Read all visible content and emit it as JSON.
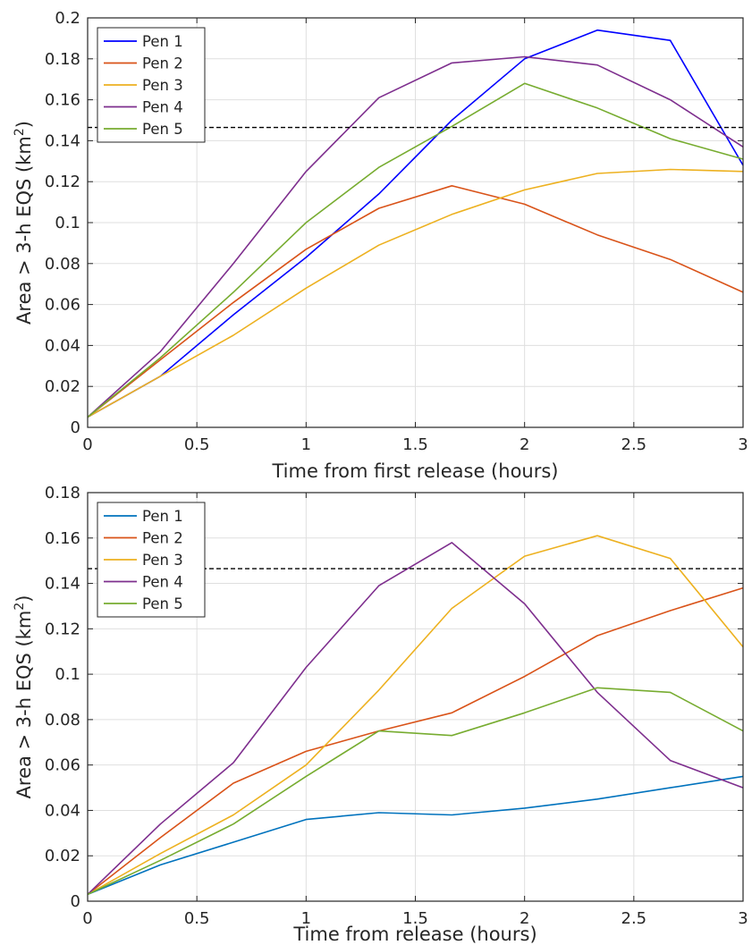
{
  "chart_data": [
    {
      "type": "line",
      "xlabel": "Time from first release (hours)",
      "ylabel": "Area > 3-h EQS (km",
      "ylabel_sup": "2",
      "ylabel_end": ")",
      "xlim": [
        0,
        3
      ],
      "ylim": [
        0,
        0.2
      ],
      "xticks": [
        0,
        0.5,
        1,
        1.5,
        2,
        2.5,
        3
      ],
      "xtick_labels": [
        "0",
        "0.5",
        "1",
        "1.5",
        "2",
        "2.5",
        "3"
      ],
      "yticks": [
        0,
        0.02,
        0.04,
        0.06,
        0.08,
        0.1,
        0.12,
        0.14,
        0.16,
        0.18,
        0.2
      ],
      "ytick_labels": [
        "0",
        "0.02",
        "0.04",
        "0.06",
        "0.08",
        "0.1",
        "0.12",
        "0.14",
        "0.16",
        "0.18",
        "0.2"
      ],
      "grid": true,
      "legend_position": "top-left",
      "threshold": 0.1465,
      "x": [
        0,
        0.333,
        0.667,
        1,
        1.333,
        1.667,
        2,
        2.333,
        2.667,
        3
      ],
      "series": [
        {
          "name": "Pen 1",
          "color": "#0000ff",
          "values": [
            0.005,
            0.025,
            0.055,
            0.083,
            0.114,
            0.15,
            0.18,
            0.194,
            0.189,
            0.128
          ]
        },
        {
          "name": "Pen 2",
          "color": "#d95319",
          "values": [
            0.005,
            0.033,
            0.061,
            0.087,
            0.107,
            0.118,
            0.109,
            0.094,
            0.082,
            0.066
          ]
        },
        {
          "name": "Pen 3",
          "color": "#edb120",
          "values": [
            0.005,
            0.025,
            0.045,
            0.068,
            0.089,
            0.104,
            0.116,
            0.124,
            0.126,
            0.125
          ]
        },
        {
          "name": "Pen 4",
          "color": "#7e2f8e",
          "values": [
            0.005,
            0.037,
            0.08,
            0.125,
            0.161,
            0.178,
            0.181,
            0.177,
            0.16,
            0.137
          ]
        },
        {
          "name": "Pen 5",
          "color": "#77ac30",
          "values": [
            0.005,
            0.034,
            0.066,
            0.1,
            0.127,
            0.147,
            0.168,
            0.156,
            0.141,
            0.131
          ]
        }
      ]
    },
    {
      "type": "line",
      "xlabel": "Time from release (hours)",
      "ylabel": "Area > 3-h EQS (km",
      "ylabel_sup": "2",
      "ylabel_end": ")",
      "xlim": [
        0,
        3
      ],
      "ylim": [
        0,
        0.18
      ],
      "xticks": [
        0,
        0.5,
        1,
        1.5,
        2,
        2.5,
        3
      ],
      "xtick_labels": [
        "0",
        "0.5",
        "1",
        "1.5",
        "2",
        "2.5",
        "3"
      ],
      "yticks": [
        0,
        0.02,
        0.04,
        0.06,
        0.08,
        0.1,
        0.12,
        0.14,
        0.16,
        0.18
      ],
      "ytick_labels": [
        "0",
        "0.02",
        "0.04",
        "0.06",
        "0.08",
        "0.1",
        "0.12",
        "0.14",
        "0.16",
        "0.18"
      ],
      "grid": true,
      "legend_position": "top-left",
      "threshold": 0.1465,
      "x": [
        0,
        0.333,
        0.667,
        1,
        1.333,
        1.667,
        2,
        2.333,
        2.667,
        3
      ],
      "series": [
        {
          "name": "Pen 1",
          "color": "#0072bd",
          "values": [
            0.003,
            0.016,
            0.026,
            0.036,
            0.039,
            0.038,
            0.041,
            0.045,
            0.05,
            0.055
          ]
        },
        {
          "name": "Pen 2",
          "color": "#d95319",
          "values": [
            0.003,
            0.028,
            0.052,
            0.066,
            0.075,
            0.083,
            0.099,
            0.117,
            0.128,
            0.138
          ]
        },
        {
          "name": "Pen 3",
          "color": "#edb120",
          "values": [
            0.003,
            0.021,
            0.038,
            0.06,
            0.093,
            0.129,
            0.152,
            0.161,
            0.151,
            0.112
          ]
        },
        {
          "name": "Pen 4",
          "color": "#7e2f8e",
          "values": [
            0.003,
            0.034,
            0.061,
            0.103,
            0.139,
            0.158,
            0.131,
            0.092,
            0.062,
            0.05
          ]
        },
        {
          "name": "Pen 5",
          "color": "#77ac30",
          "values": [
            0.003,
            0.018,
            0.034,
            0.055,
            0.075,
            0.073,
            0.083,
            0.094,
            0.092,
            0.075
          ]
        }
      ]
    }
  ]
}
